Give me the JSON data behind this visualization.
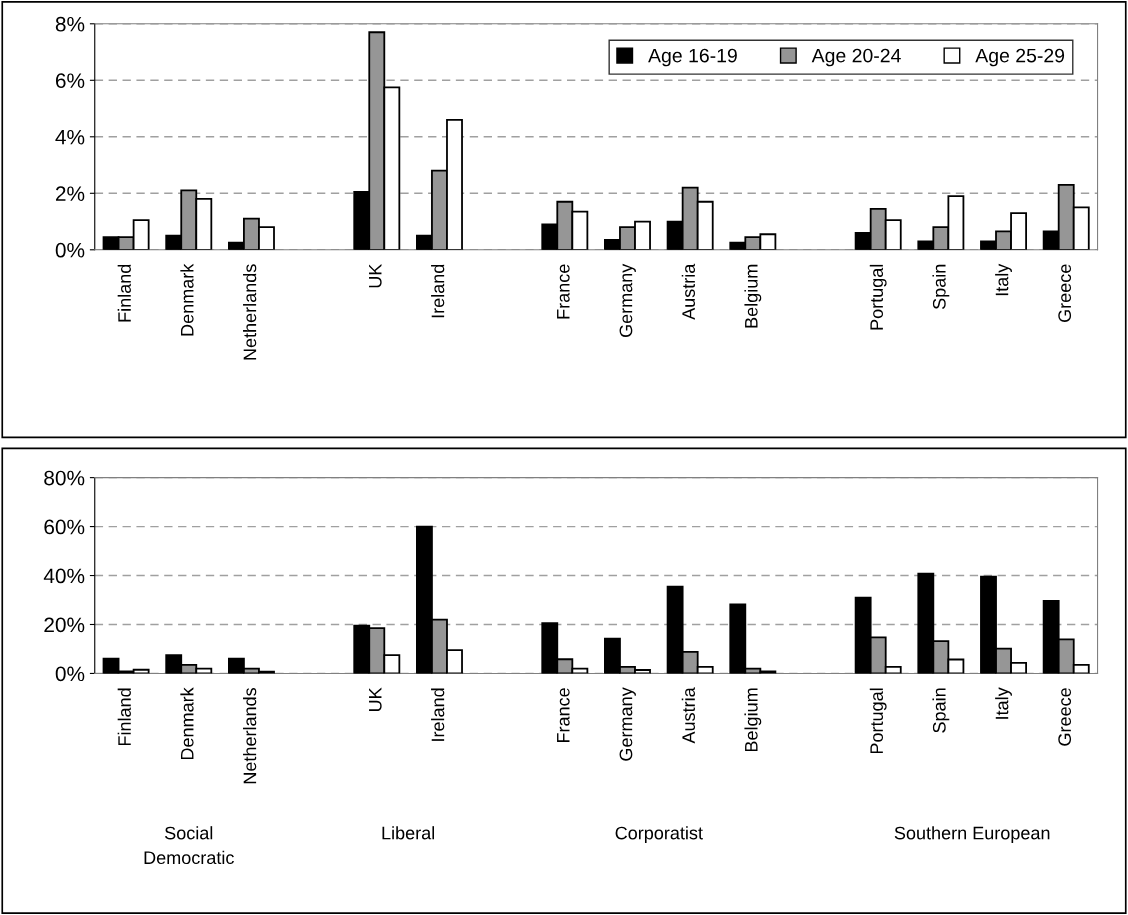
{
  "chart_data": [
    {
      "type": "bar",
      "categories": [
        "Finland",
        "Denmark",
        "Netherlands",
        null,
        "UK",
        "Ireland",
        null,
        "France",
        "Germany",
        "Austria",
        "Belgium",
        null,
        "Portugal",
        "Spain",
        "Italy",
        "Greece"
      ],
      "series": [
        {
          "name": "Age 16-19",
          "color": "#000000",
          "values": [
            0.45,
            0.5,
            0.25,
            null,
            2.05,
            0.5,
            null,
            0.9,
            0.35,
            1.0,
            0.25,
            null,
            0.6,
            0.3,
            0.3,
            0.65
          ]
        },
        {
          "name": "Age 20-24",
          "color": "#969696",
          "values": [
            0.45,
            2.1,
            1.1,
            null,
            7.7,
            2.8,
            null,
            1.7,
            0.8,
            2.2,
            0.45,
            null,
            1.45,
            0.8,
            0.65,
            2.3
          ]
        },
        {
          "name": "Age 25-29",
          "color": "#ffffff",
          "values": [
            1.05,
            1.8,
            0.8,
            null,
            5.75,
            4.6,
            null,
            1.35,
            1.0,
            1.7,
            0.55,
            null,
            1.05,
            1.9,
            1.3,
            1.5
          ]
        }
      ],
      "ylim": [
        0,
        8
      ],
      "yticks": [
        {
          "value": 0,
          "label": "0%"
        },
        {
          "value": 2,
          "label": "2%"
        },
        {
          "value": 4,
          "label": "4%"
        },
        {
          "value": 6,
          "label": "6%"
        },
        {
          "value": 8,
          "label": "8%"
        }
      ],
      "grid": "y",
      "legend": "top right"
    },
    {
      "type": "bar",
      "categories": [
        "Finland",
        "Denmark",
        "Netherlands",
        null,
        "UK",
        "Ireland",
        null,
        "France",
        "Germany",
        "Austria",
        "Belgium",
        null,
        "Portugal",
        "Spain",
        "Italy",
        "Greece"
      ],
      "series": [
        {
          "color": "#000000",
          "values": [
            6,
            7.5,
            6,
            null,
            19.5,
            60,
            null,
            20.5,
            14.2,
            35.5,
            28.2,
            null,
            31,
            40.8,
            39.5,
            29.6
          ]
        },
        {
          "color": "#969696",
          "values": [
            0.8,
            3.5,
            2,
            null,
            18.5,
            22,
            null,
            5.8,
            2.7,
            8.8,
            2,
            null,
            14.7,
            13.2,
            10.1,
            13.9
          ]
        },
        {
          "color": "#ffffff",
          "values": [
            1.5,
            2,
            0.7,
            null,
            7.5,
            9.5,
            null,
            2,
            1.4,
            2.7,
            0.8,
            null,
            2.7,
            5.7,
            4.3,
            3.5
          ]
        }
      ],
      "ylim": [
        0,
        80
      ],
      "yticks": [
        {
          "value": 0,
          "label": "0%"
        },
        {
          "value": 20,
          "label": "20%"
        },
        {
          "value": 40,
          "label": "40%"
        },
        {
          "value": 60,
          "label": "60%"
        },
        {
          "value": 80,
          "label": "80%"
        }
      ],
      "grid": "y",
      "annotations": [
        "Social\nDemocratic",
        "Liberal",
        "Corporatist",
        "Southern European"
      ]
    }
  ]
}
